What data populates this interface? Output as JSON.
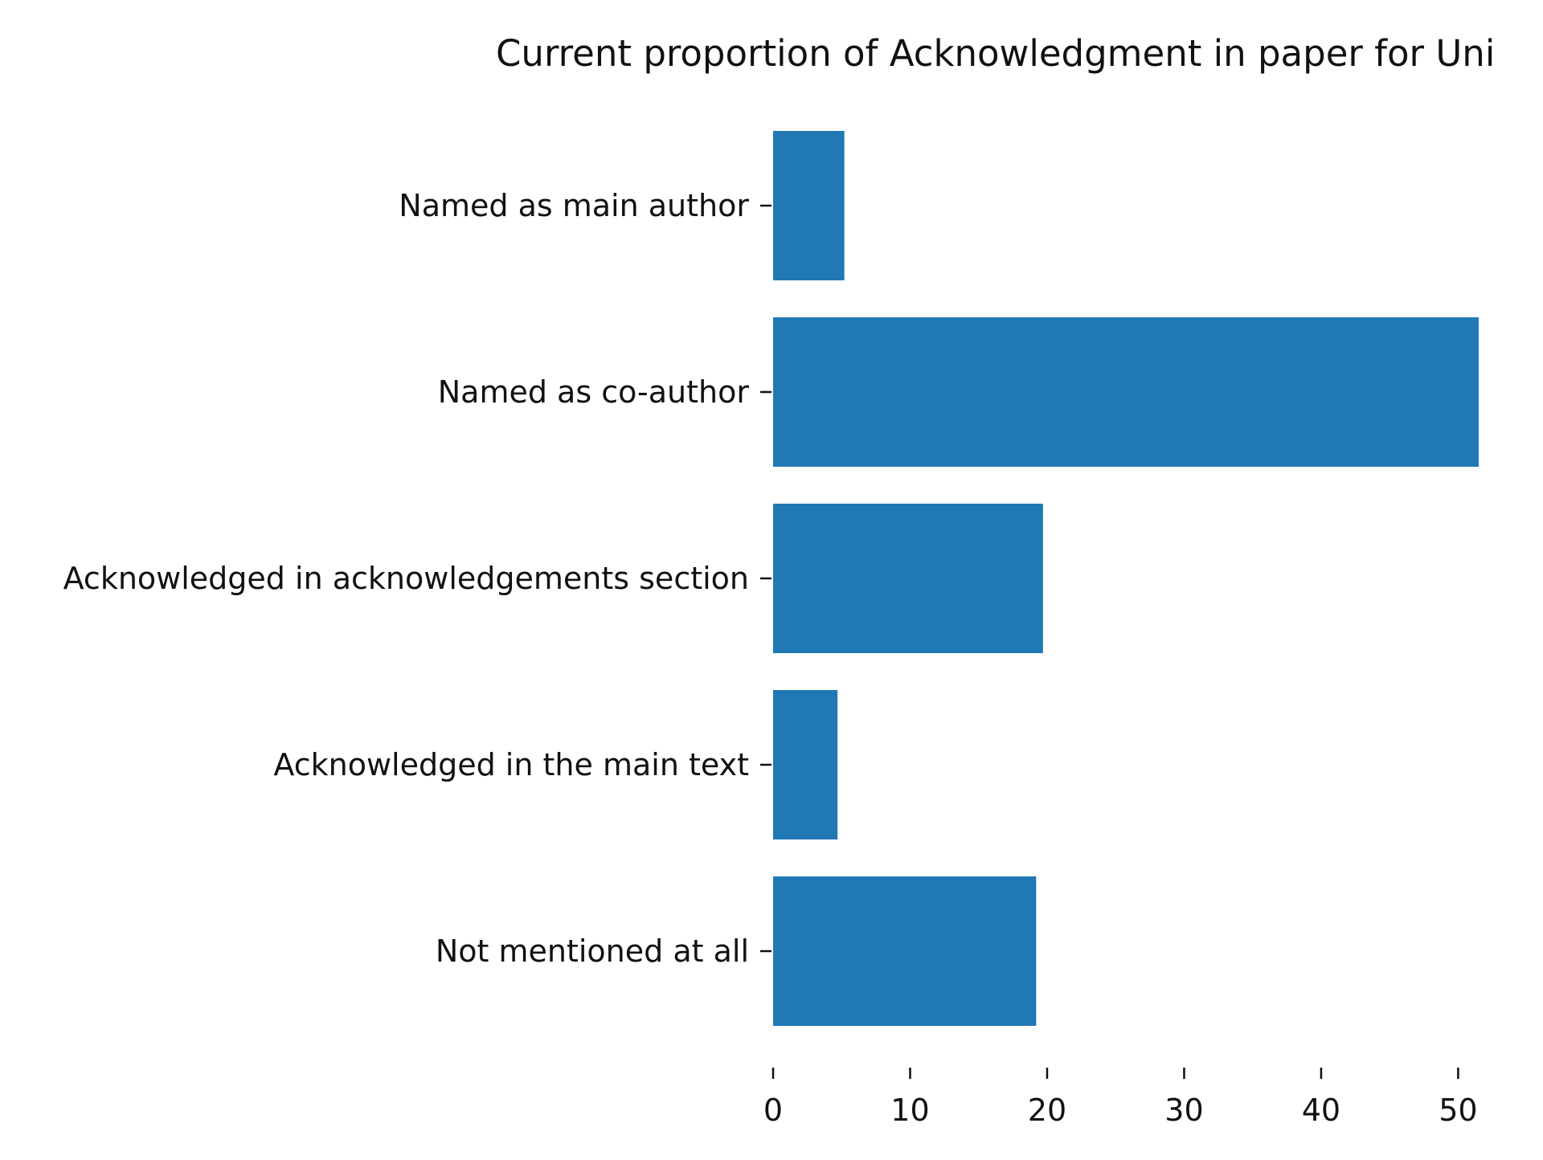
{
  "chart_data": {
    "type": "bar",
    "orientation": "horizontal",
    "title": "Current proportion of Acknowledgment in paper for Uni",
    "xlabel": "",
    "ylabel": "",
    "categories": [
      "Named as main author",
      "Named as co-author",
      "Acknowledged in acknowledgements section",
      "Acknowledged in the main text",
      "Not mentioned at all"
    ],
    "values": [
      5.2,
      51.5,
      19.7,
      4.7,
      19.2
    ],
    "xlim": [
      0,
      51.5
    ],
    "xticks": [
      "0",
      "10",
      "20",
      "30",
      "40",
      "50"
    ],
    "grid": false,
    "bar_color": "#2078b4"
  }
}
